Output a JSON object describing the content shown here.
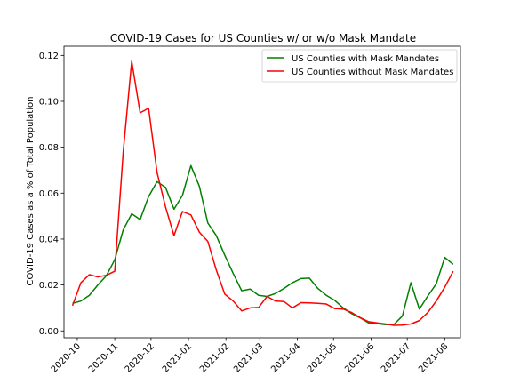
{
  "chart_data": {
    "type": "line",
    "title": "COVID-19 Cases for US Counties w/ or w/o Mask Mandate",
    "xlabel": "",
    "ylabel": "COVID-19 Cases as a % of Total Population",
    "xlim": [
      "2020-09-20",
      "2021-08-14"
    ],
    "ylim": [
      -0.003,
      0.124
    ],
    "x_ticks": [
      "2020-10",
      "2020-11",
      "2020-12",
      "2021-01",
      "2021-02",
      "2021-03",
      "2021-04",
      "2021-05",
      "2021-06",
      "2021-07",
      "2021-08"
    ],
    "y_ticks": [
      "0.00",
      "0.02",
      "0.04",
      "0.06",
      "0.08",
      "0.10",
      "0.12"
    ],
    "y_tick_values": [
      0,
      0.02,
      0.04,
      0.06,
      0.08,
      0.1,
      0.12
    ],
    "legend_position": "upper right",
    "grid": false,
    "x": [
      "2020-09-27",
      "2020-10-04",
      "2020-10-11",
      "2020-10-18",
      "2020-10-25",
      "2020-11-01",
      "2020-11-08",
      "2020-11-15",
      "2020-11-22",
      "2020-11-29",
      "2020-12-06",
      "2020-12-13",
      "2020-12-20",
      "2020-12-27",
      "2021-01-03",
      "2021-01-10",
      "2021-01-17",
      "2021-01-24",
      "2021-01-31",
      "2021-02-07",
      "2021-02-14",
      "2021-02-21",
      "2021-02-28",
      "2021-03-07",
      "2021-03-14",
      "2021-03-21",
      "2021-03-28",
      "2021-04-04",
      "2021-04-11",
      "2021-04-18",
      "2021-04-25",
      "2021-05-02",
      "2021-05-09",
      "2021-05-16",
      "2021-05-23",
      "2021-05-30",
      "2021-06-06",
      "2021-06-13",
      "2021-06-20",
      "2021-06-27",
      "2021-07-04",
      "2021-07-11",
      "2021-07-18",
      "2021-07-25",
      "2021-08-01",
      "2021-08-08"
    ],
    "series": [
      {
        "name": "US Counties with Mask Mandates",
        "color": "#008000",
        "values": [
          0.012,
          0.013,
          0.0155,
          0.02,
          0.024,
          0.031,
          0.044,
          0.051,
          0.0485,
          0.0585,
          0.065,
          0.0625,
          0.053,
          0.059,
          0.072,
          0.063,
          0.047,
          0.0415,
          0.033,
          0.025,
          0.0175,
          0.0182,
          0.0155,
          0.015,
          0.0163,
          0.0185,
          0.021,
          0.0228,
          0.023,
          0.0185,
          0.0155,
          0.0133,
          0.01,
          0.0075,
          0.0057,
          0.0035,
          0.0032,
          0.0027,
          0.0028,
          0.0065,
          0.021,
          0.0095,
          0.0152,
          0.0205,
          0.032,
          0.029
        ]
      },
      {
        "name": "US Counties without Mask Mandates",
        "color": "#ff0000",
        "values": [
          0.011,
          0.021,
          0.0245,
          0.0235,
          0.0242,
          0.026,
          0.078,
          0.1175,
          0.095,
          0.097,
          0.069,
          0.054,
          0.0415,
          0.052,
          0.0505,
          0.043,
          0.039,
          0.0265,
          0.016,
          0.013,
          0.0087,
          0.01,
          0.0102,
          0.015,
          0.013,
          0.0128,
          0.01,
          0.0123,
          0.0122,
          0.012,
          0.0117,
          0.0097,
          0.0095,
          0.008,
          0.0058,
          0.004,
          0.0035,
          0.003,
          0.0024,
          0.0025,
          0.003,
          0.0045,
          0.008,
          0.013,
          0.019,
          0.026
        ]
      }
    ]
  }
}
